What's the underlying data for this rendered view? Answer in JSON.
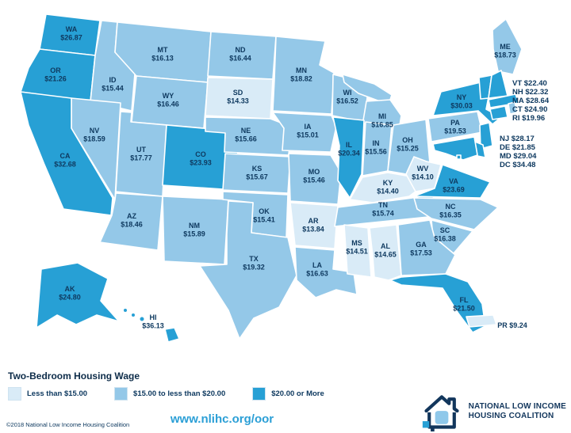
{
  "legend": {
    "title": "Two-Bedroom Housing Wage",
    "items": [
      {
        "label": "Less than $15.00",
        "category": "low"
      },
      {
        "label": "$15.00 to less than $20.00",
        "category": "mid"
      },
      {
        "label": "$20.00 or More",
        "category": "high"
      }
    ],
    "colors": {
      "low": "#d9ebf7",
      "mid": "#94c8e8",
      "high": "#27a0d5"
    }
  },
  "map": {
    "states": [
      {
        "abbr": "WA",
        "value": "$26.87",
        "category": "high"
      },
      {
        "abbr": "OR",
        "value": "$21.26",
        "category": "high"
      },
      {
        "abbr": "CA",
        "value": "$32.68",
        "category": "high"
      },
      {
        "abbr": "NV",
        "value": "$18.59",
        "category": "mid"
      },
      {
        "abbr": "ID",
        "value": "$15.44",
        "category": "mid"
      },
      {
        "abbr": "MT",
        "value": "$16.13",
        "category": "mid"
      },
      {
        "abbr": "WY",
        "value": "$16.46",
        "category": "mid"
      },
      {
        "abbr": "UT",
        "value": "$17.77",
        "category": "mid"
      },
      {
        "abbr": "AZ",
        "value": "$18.46",
        "category": "mid"
      },
      {
        "abbr": "NM",
        "value": "$15.89",
        "category": "mid"
      },
      {
        "abbr": "CO",
        "value": "$23.93",
        "category": "high"
      },
      {
        "abbr": "ND",
        "value": "$16.44",
        "category": "mid"
      },
      {
        "abbr": "SD",
        "value": "$14.33",
        "category": "low"
      },
      {
        "abbr": "NE",
        "value": "$15.66",
        "category": "mid"
      },
      {
        "abbr": "KS",
        "value": "$15.67",
        "category": "mid"
      },
      {
        "abbr": "OK",
        "value": "$15.41",
        "category": "mid"
      },
      {
        "abbr": "TX",
        "value": "$19.32",
        "category": "mid"
      },
      {
        "abbr": "MN",
        "value": "$18.82",
        "category": "mid"
      },
      {
        "abbr": "IA",
        "value": "$15.01",
        "category": "mid"
      },
      {
        "abbr": "MO",
        "value": "$15.46",
        "category": "mid"
      },
      {
        "abbr": "AR",
        "value": "$13.84",
        "category": "low"
      },
      {
        "abbr": "LA",
        "value": "$16.63",
        "category": "mid"
      },
      {
        "abbr": "WI",
        "value": "$16.52",
        "category": "mid"
      },
      {
        "abbr": "MI",
        "value": "$16.85",
        "category": "mid"
      },
      {
        "abbr": "IL",
        "value": "$20.34",
        "category": "high"
      },
      {
        "abbr": "IN",
        "value": "$15.56",
        "category": "mid"
      },
      {
        "abbr": "OH",
        "value": "$15.25",
        "category": "mid"
      },
      {
        "abbr": "KY",
        "value": "$14.40",
        "category": "low"
      },
      {
        "abbr": "TN",
        "value": "$15.74",
        "category": "mid"
      },
      {
        "abbr": "MS",
        "value": "$14.51",
        "category": "low"
      },
      {
        "abbr": "AL",
        "value": "$14.65",
        "category": "low"
      },
      {
        "abbr": "GA",
        "value": "$17.53",
        "category": "mid"
      },
      {
        "abbr": "FL",
        "value": "$21.50",
        "category": "high"
      },
      {
        "abbr": "SC",
        "value": "$16.38",
        "category": "mid"
      },
      {
        "abbr": "NC",
        "value": "$16.35",
        "category": "mid"
      },
      {
        "abbr": "VA",
        "value": "$23.69",
        "category": "high"
      },
      {
        "abbr": "WV",
        "value": "$14.10",
        "category": "low"
      },
      {
        "abbr": "PA",
        "value": "$19.53",
        "category": "mid"
      },
      {
        "abbr": "NY",
        "value": "$30.03",
        "category": "high"
      },
      {
        "abbr": "ME",
        "value": "$18.73",
        "category": "mid"
      },
      {
        "abbr": "VT",
        "value": "$22.40",
        "category": "high"
      },
      {
        "abbr": "NH",
        "value": "$22.32",
        "category": "high"
      },
      {
        "abbr": "MA",
        "value": "$28.64",
        "category": "high"
      },
      {
        "abbr": "CT",
        "value": "$24.90",
        "category": "high"
      },
      {
        "abbr": "RI",
        "value": "$19.96",
        "category": "mid"
      },
      {
        "abbr": "NJ",
        "value": "$28.17",
        "category": "high"
      },
      {
        "abbr": "DE",
        "value": "$21.85",
        "category": "high"
      },
      {
        "abbr": "MD",
        "value": "$29.04",
        "category": "high"
      },
      {
        "abbr": "DC",
        "value": "$34.48",
        "category": "high"
      },
      {
        "abbr": "AK",
        "value": "$24.80",
        "category": "high"
      },
      {
        "abbr": "HI",
        "value": "$36.13",
        "category": "high"
      },
      {
        "abbr": "PR",
        "value": "$9.24",
        "category": "low"
      }
    ],
    "callout_groups": [
      [
        "VT",
        "NH",
        "MA",
        "CT",
        "RI"
      ],
      [
        "NJ",
        "DE",
        "MD",
        "DC"
      ]
    ]
  },
  "footer": {
    "copyright": "©2018 National Low Income Housing Coalition",
    "url": "www.nlihc.org/oor",
    "logo_line1": "NATIONAL LOW INCOME",
    "logo_line2": "HOUSING COALITION"
  }
}
